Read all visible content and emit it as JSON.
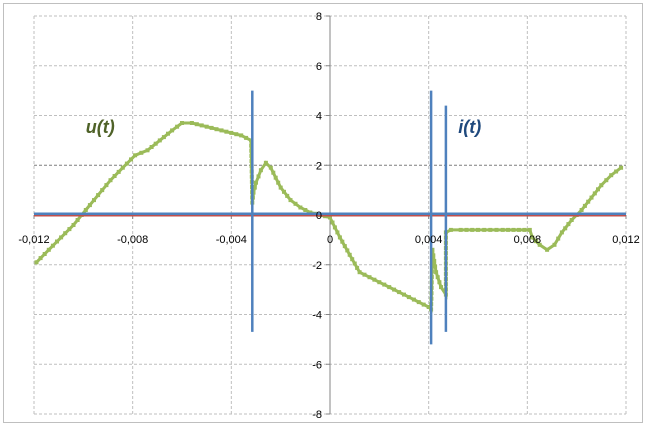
{
  "chart_data": {
    "type": "line",
    "title": "",
    "xlabel": "",
    "ylabel": "",
    "xlim": [
      -0.012,
      0.012
    ],
    "ylim": [
      -8,
      8
    ],
    "x_ticks": [
      "-0,012",
      "-0,008",
      "-0,004",
      "0",
      "0,004",
      "0,008",
      "0,012"
    ],
    "x_tick_values": [
      -0.012,
      -0.008,
      -0.004,
      0,
      0.004,
      0.008,
      0.012
    ],
    "y_ticks": [
      "8",
      "6",
      "4",
      "2",
      "0",
      "-2",
      "-4",
      "-6",
      "-8"
    ],
    "y_tick_values": [
      8,
      6,
      4,
      2,
      0,
      -2,
      -4,
      -6,
      -8
    ],
    "grid": true,
    "annotations": [
      {
        "text": "u(t)",
        "x": -0.0099,
        "y": 3.3,
        "color": "#4f6228"
      },
      {
        "text": "i(t)",
        "x": 0.0052,
        "y": 3.3,
        "color": "#1f497d"
      }
    ],
    "series": [
      {
        "color": "#9bbb59",
        "style": "stepped-markers",
        "x": [
          -0.0119,
          -0.0114,
          -0.0109,
          -0.0104,
          -0.0099,
          -0.0094,
          -0.0089,
          -0.0084,
          -0.0079,
          -0.0074,
          -0.0069,
          -0.0064,
          -0.006,
          -0.0056,
          -0.0052,
          -0.0048,
          -0.0044,
          -0.004,
          -0.0036,
          -0.0032,
          -0.00315,
          -0.0031,
          -0.003,
          -0.0028,
          -0.0026,
          -0.0024,
          -0.0022,
          -0.002,
          -0.0016,
          -0.0012,
          -0.0008,
          -0.0004,
          0.0,
          0.0004,
          0.0008,
          0.0012,
          0.0016,
          0.002,
          0.0024,
          0.0028,
          0.0032,
          0.0036,
          0.004,
          0.0041,
          0.00415,
          0.0043,
          0.0045,
          0.0047,
          0.0047,
          0.0049,
          0.0053,
          0.006,
          0.007,
          0.0081,
          0.0082,
          0.0085,
          0.0088,
          0.0091,
          0.0094,
          0.0098,
          0.0102,
          0.0106,
          0.011,
          0.0114,
          0.0118
        ],
        "y": [
          -1.9,
          -1.4,
          -0.9,
          -0.4,
          0.2,
          0.8,
          1.4,
          1.9,
          2.4,
          2.6,
          3.0,
          3.4,
          3.7,
          3.7,
          3.6,
          3.5,
          3.4,
          3.3,
          3.2,
          3.0,
          0.5,
          0.9,
          1.3,
          1.8,
          2.1,
          1.9,
          1.5,
          1.1,
          0.6,
          0.3,
          0.1,
          0.0,
          -0.1,
          -0.9,
          -1.6,
          -2.3,
          -2.5,
          -2.7,
          -2.9,
          -3.1,
          -3.3,
          -3.5,
          -3.7,
          -3.8,
          -1.4,
          -2.3,
          -2.9,
          -3.2,
          -0.7,
          -0.6,
          -0.6,
          -0.6,
          -0.6,
          -0.6,
          -0.9,
          -1.2,
          -1.4,
          -1.2,
          -0.7,
          -0.2,
          0.2,
          0.7,
          1.2,
          1.6,
          1.9
        ]
      },
      {
        "color": "#c0504d",
        "style": "line",
        "x": [
          -0.012,
          0.012
        ],
        "y": [
          -0.02,
          -0.02
        ]
      },
      {
        "color": "#4f81bd",
        "style": "line",
        "x": [
          -0.012,
          -0.00315,
          -0.00315,
          -0.00315,
          -0.00315,
          0.0041,
          0.0041,
          0.0041,
          0.0041,
          0.0047,
          0.0047,
          0.0047,
          0.0047,
          0.012
        ],
        "y": [
          0.05,
          0.05,
          5.0,
          -4.7,
          0.05,
          0.05,
          5.0,
          -5.2,
          0.05,
          0.05,
          4.4,
          -4.7,
          0.05,
          0.05
        ]
      }
    ]
  }
}
